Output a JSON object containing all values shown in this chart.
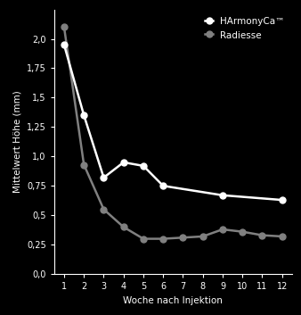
{
  "harmonyCa_x": [
    1,
    2,
    3,
    4,
    5,
    6,
    9,
    12
  ],
  "harmonyCa_y": [
    1.95,
    1.35,
    0.82,
    0.95,
    0.92,
    0.75,
    0.67,
    0.63
  ],
  "radiesse_x": [
    1,
    2,
    3,
    4,
    5,
    6,
    7,
    8,
    9,
    10,
    11,
    12
  ],
  "radiesse_y": [
    2.1,
    0.93,
    0.55,
    0.4,
    0.3,
    0.3,
    0.31,
    0.32,
    0.38,
    0.36,
    0.33,
    0.32
  ],
  "harmonyCa_color": "#ffffff",
  "radiesse_color": "#808080",
  "background_color": "#000000",
  "text_color": "#ffffff",
  "xlabel": "Woche nach Injektion",
  "ylabel": "Mittelwert Höhe (mm)",
  "legend_harmonyCa": "HArmonyCa™",
  "legend_radiesse": "Radiesse",
  "xlim": [
    0.5,
    12.5
  ],
  "ylim": [
    0.0,
    2.25
  ],
  "yticks": [
    0.0,
    0.25,
    0.5,
    0.75,
    1.0,
    1.25,
    1.5,
    1.75,
    2.0
  ],
  "ytick_labels": [
    "0,0",
    "0,25",
    "0,5",
    "0,75",
    "1,0",
    "1,25",
    "1,5",
    "1,75",
    "2,0"
  ],
  "xticks": [
    1,
    2,
    3,
    4,
    5,
    6,
    7,
    8,
    9,
    10,
    11,
    12
  ],
  "linewidth": 1.8,
  "markersize": 5,
  "font_size": 7,
  "legend_font_size": 7.5,
  "axis_label_font_size": 7.5
}
